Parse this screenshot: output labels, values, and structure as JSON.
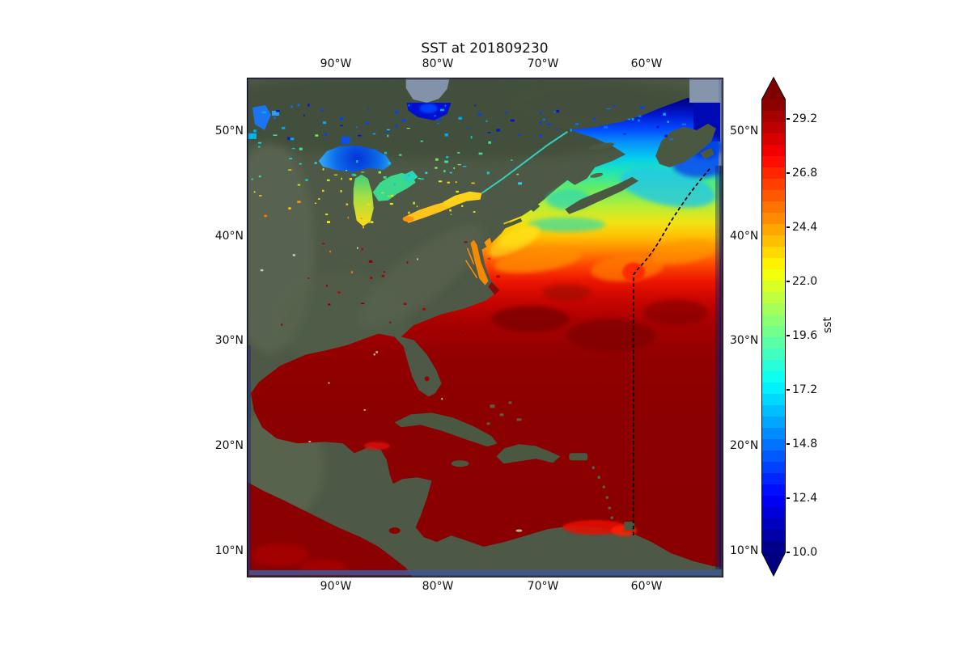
{
  "figure": {
    "title": "SST at 201809230"
  },
  "axes": {
    "top": [
      "90°W",
      "80°W",
      "70°W",
      "60°W"
    ],
    "bottom": [
      "90°W",
      "80°W",
      "70°W",
      "60°W"
    ],
    "left": [
      "50°N",
      "40°N",
      "30°N",
      "20°N",
      "10°N"
    ],
    "right": [
      "50°N",
      "40°N",
      "30°N",
      "20°N",
      "10°N"
    ]
  },
  "colorbar": {
    "label": "sst",
    "ticks": [
      "29.2",
      "26.8",
      "24.4",
      "22.0",
      "19.6",
      "17.2",
      "14.8",
      "12.4",
      "10.0"
    ],
    "colormap": "jet",
    "extend": "both"
  },
  "chart_data": {
    "type": "heatmap",
    "title": "SST at 201809230",
    "variable": "sst",
    "date_code": "201809230",
    "colormap": "jet",
    "colorbar_label": "sst",
    "colorbar_ticks": [
      29.2,
      26.8,
      24.4,
      22.0,
      19.6,
      17.2,
      14.8,
      12.4,
      10.0
    ],
    "colorbar_range": [
      10.0,
      29.2
    ],
    "colorbar_extend": "both",
    "lon_tick_labels": [
      "90°W",
      "80°W",
      "70°W",
      "60°W"
    ],
    "lat_tick_labels": [
      "50°N",
      "40°N",
      "30°N",
      "20°N",
      "10°N"
    ],
    "lon_extent": [
      "~99°W",
      "~52°W"
    ],
    "lat_extent": [
      "~7.5°N",
      "~55°N"
    ],
    "grid": false,
    "basemap": "satellite imagery (dark green land, navy ocean edges)",
    "regions_estimated_sst": [
      {
        "region": "Gulf of Mexico, Caribbean, subtropical Atlantic south of ~35°N",
        "sst": ">=29.2 (saturated dark red)"
      },
      {
        "region": "Gulf Stream edge / Mid-Atlantic Bight",
        "sst": "24-28"
      },
      {
        "region": "Georges Bank / Gulf of Maine",
        "sst": "18-22"
      },
      {
        "region": "Scotian Shelf",
        "sst": "15-19"
      },
      {
        "region": "Gulf of St. Lawrence / Newfoundland shelf",
        "sst": "12-17"
      },
      {
        "region": "Labrador shelf / Hudson & James Bay",
        "sst": "<=10 (dark blue)"
      },
      {
        "region": "Lake Superior",
        "sst": "12-16"
      },
      {
        "region": "Lakes Michigan & Huron",
        "sst": "19-23"
      },
      {
        "region": "Lakes Erie & Ontario",
        "sst": "22-25"
      }
    ],
    "annotations": [
      {
        "type": "dashed-track",
        "description": "black dashed transect from ~47N 54W curving southwest to ~61W at 37N, then due south to ~12N"
      }
    ]
  }
}
